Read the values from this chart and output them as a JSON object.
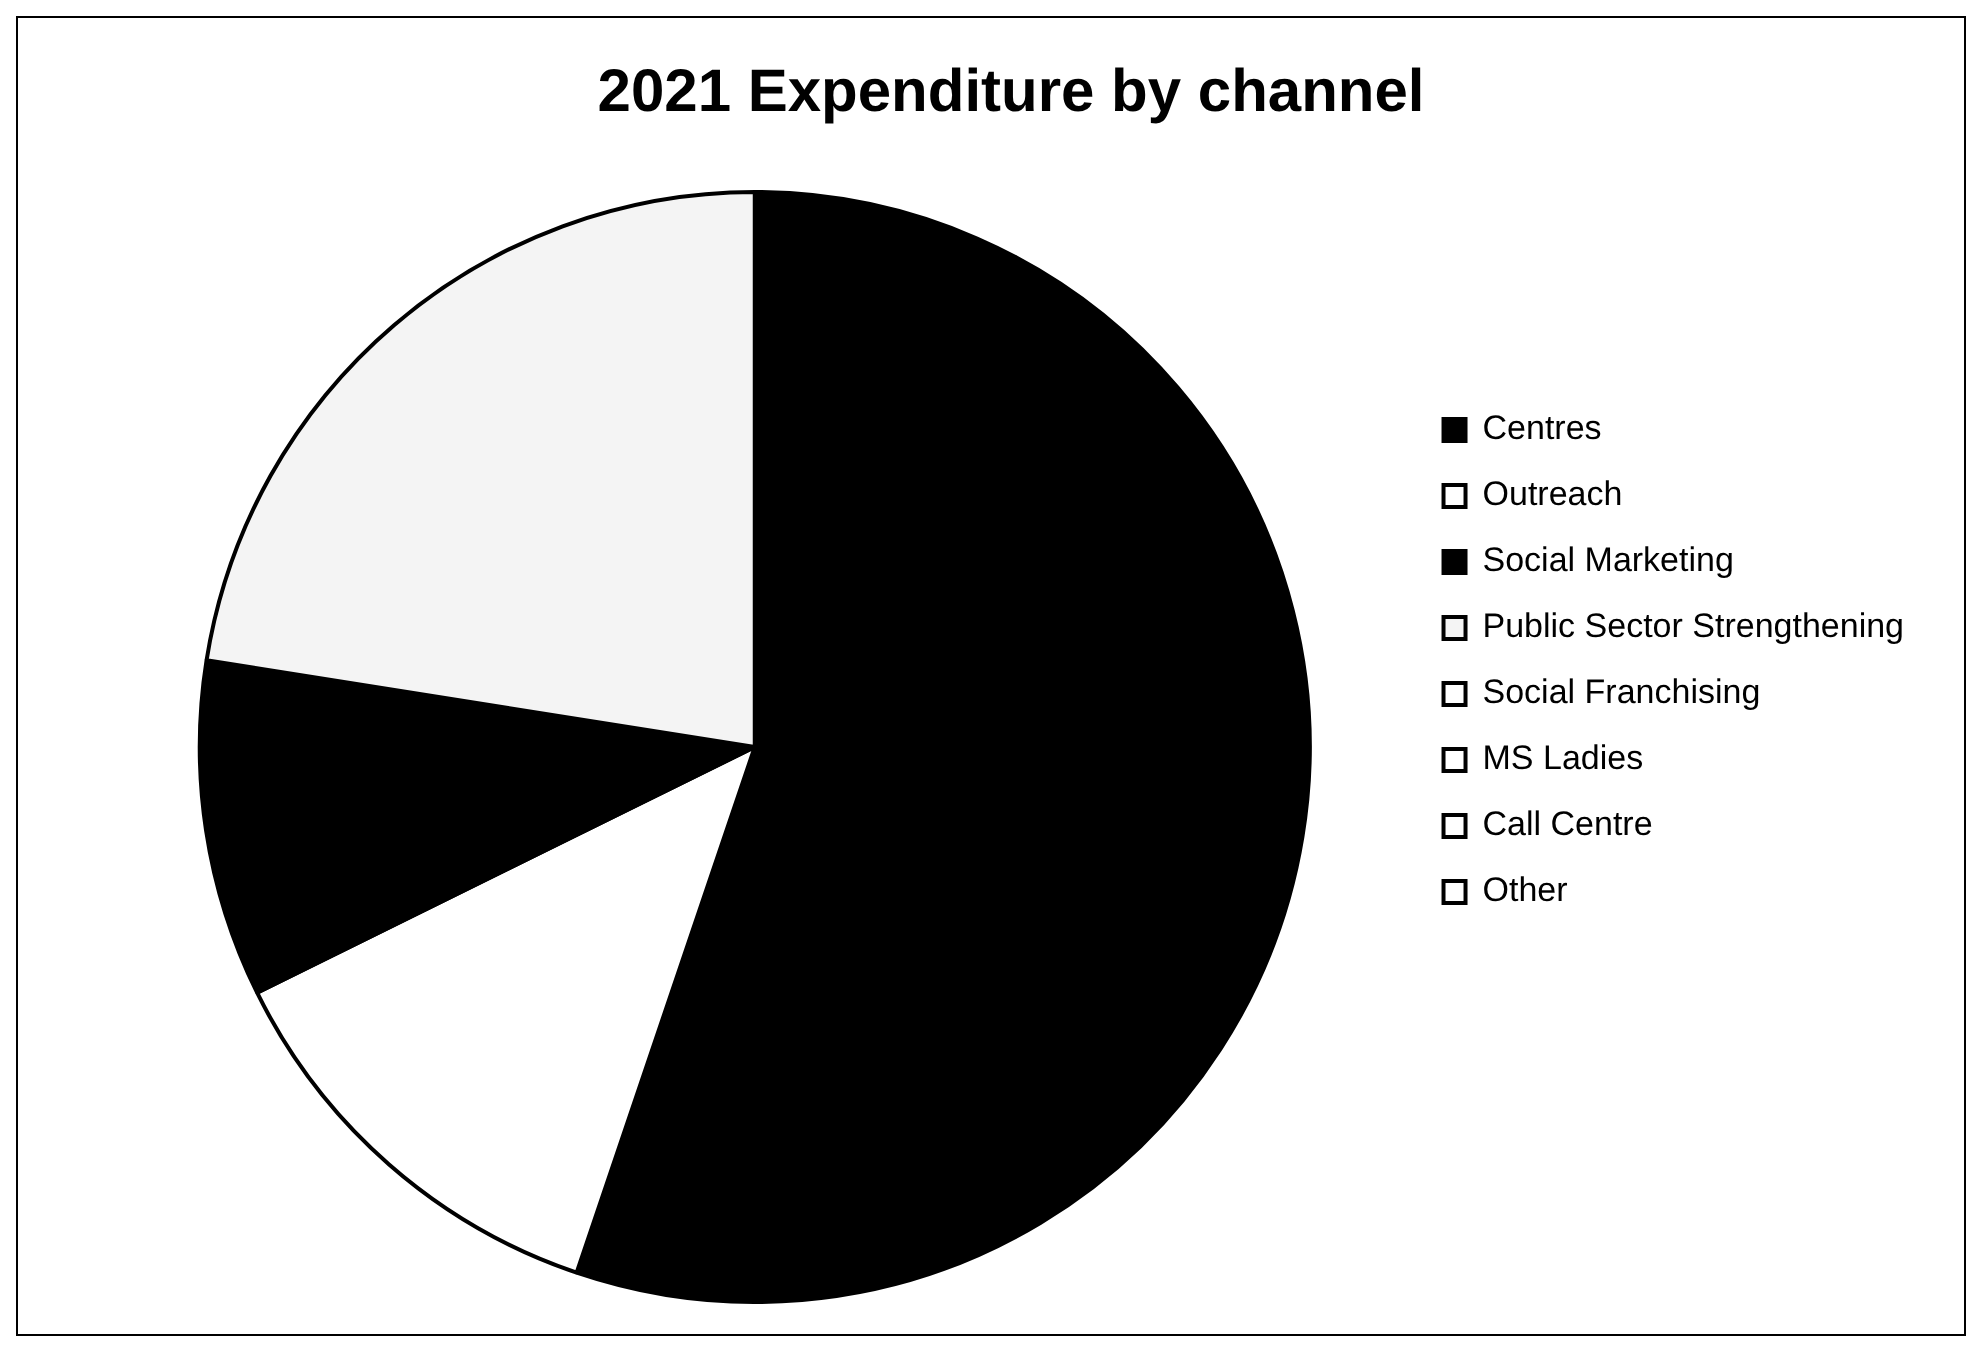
{
  "chart_data": {
    "type": "pie",
    "title": "2021 Expenditure by channel",
    "categories": [
      "Centres",
      "Outreach",
      "Social Marketing",
      "Public Sector Strengthening",
      "Social Franchising",
      "MS Ladies",
      "Call Centre",
      "Other"
    ],
    "values": [
      55.2,
      12.5,
      9.8,
      22.5,
      0,
      0,
      0,
      0
    ],
    "colors": [
      "#000000",
      "#ffffff",
      "#000000",
      "#f4f4f4",
      "#ffffff",
      "#ffffff",
      "#ffffff",
      "#ffffff"
    ],
    "legend": "right"
  }
}
